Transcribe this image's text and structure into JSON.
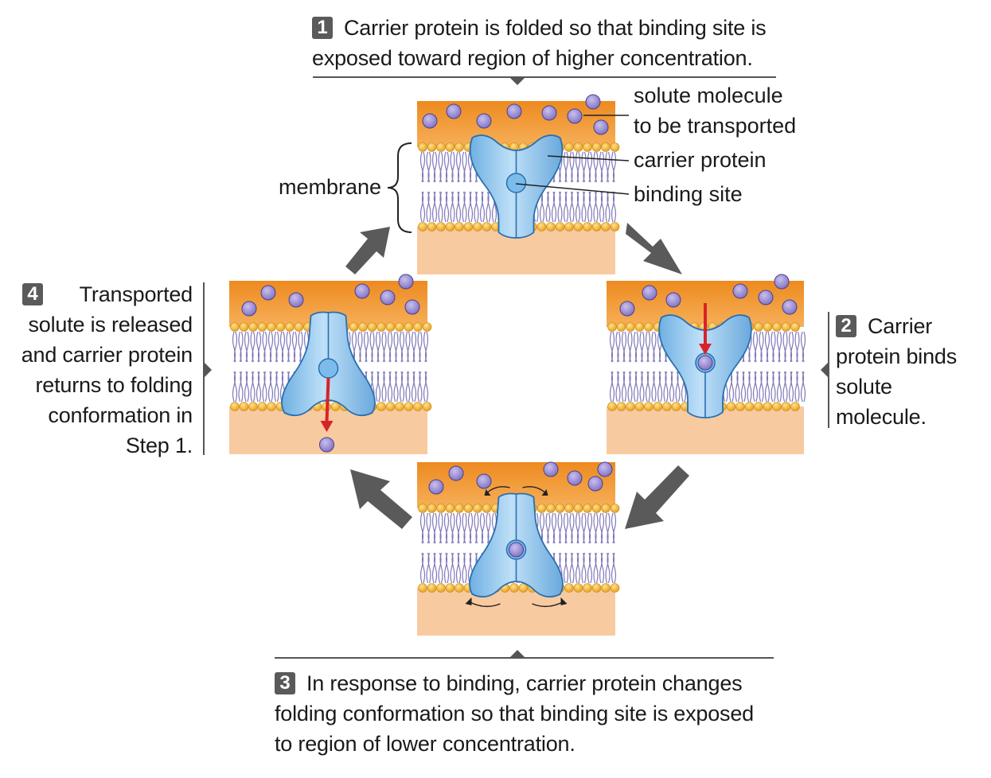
{
  "steps": [
    {
      "number": "1",
      "lines": [
        "Carrier protein is folded so that binding site is",
        "exposed toward region of higher concentration."
      ]
    },
    {
      "number": "2",
      "lines": [
        "Carrier",
        "protein binds",
        "solute",
        "molecule."
      ]
    },
    {
      "number": "3",
      "lines": [
        "In response to binding, carrier protein changes",
        "folding conformation so that binding site is exposed",
        "to region of lower concentration."
      ]
    },
    {
      "number": "4",
      "lines": [
        "Transported",
        "solute is released",
        "and carrier protein",
        "returns to folding",
        "conformation in",
        "Step 1."
      ]
    }
  ],
  "labels": {
    "solute_1": "solute molecule",
    "solute_2": "to be transported",
    "carrier": "carrier protein",
    "binding": "binding site",
    "membrane": "membrane"
  },
  "colors": {
    "outside": "#f0962a",
    "inside": "#f8caa0",
    "protein": "#8cc4ec",
    "solute": "#9a8ed0",
    "lipid_head": "#f4b53a",
    "arrow": "#5a5a5a",
    "red_arrow": "#d8232a"
  }
}
